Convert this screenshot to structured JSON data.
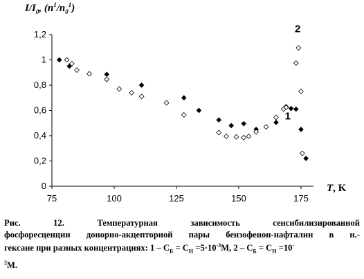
{
  "chart_data": {
    "type": "scatter",
    "ylabel_main": "I/I",
    "ylabel_main_sub": "0",
    "ylabel_comma": ", (n",
    "ylabel_sup1": "1",
    "ylabel_slash": "/n",
    "ylabel_sub0": "0",
    "ylabel_sup2": "1",
    "ylabel_close": ")",
    "xlabel_var": "T",
    "xlabel_unit": ", K",
    "xlim": [
      75,
      180
    ],
    "ylim": [
      0,
      1.2
    ],
    "xticks": [
      75,
      100,
      125,
      150,
      175
    ],
    "xtick_labels": [
      "75",
      "100",
      "125",
      "150",
      "175"
    ],
    "yticks": [
      0,
      0.2,
      0.4,
      0.6,
      0.8,
      1,
      1.2
    ],
    "ytick_labels": [
      "0",
      "0,2",
      "0,4",
      "0,6",
      "0,8",
      "1",
      "1,2"
    ],
    "grid": false,
    "series": [
      {
        "name": "1",
        "marker": "filled-diamond",
        "label_at": [
          168.5,
          0.53
        ],
        "points": [
          [
            78,
            1.0
          ],
          [
            82,
            0.95
          ],
          [
            97,
            0.885
          ],
          [
            111,
            0.8
          ],
          [
            128,
            0.7
          ],
          [
            134,
            0.6
          ],
          [
            142,
            0.525
          ],
          [
            147,
            0.48
          ],
          [
            152,
            0.495
          ],
          [
            157,
            0.45
          ],
          [
            165,
            0.505
          ],
          [
            169,
            0.63
          ],
          [
            171,
            0.615
          ],
          [
            173,
            0.61
          ],
          [
            175,
            0.45
          ],
          [
            177,
            0.22
          ]
        ]
      },
      {
        "name": "2",
        "marker": "hollow-diamond",
        "label_at": [
          172.5,
          1.22
        ],
        "points": [
          [
            81,
            1.0
          ],
          [
            83,
            0.97
          ],
          [
            85,
            0.92
          ],
          [
            90,
            0.89
          ],
          [
            97,
            0.845
          ],
          [
            102,
            0.77
          ],
          [
            107,
            0.74
          ],
          [
            111,
            0.71
          ],
          [
            121,
            0.66
          ],
          [
            128,
            0.565
          ],
          [
            142,
            0.425
          ],
          [
            145,
            0.395
          ],
          [
            149,
            0.39
          ],
          [
            152,
            0.385
          ],
          [
            154,
            0.395
          ],
          [
            157,
            0.43
          ],
          [
            161,
            0.47
          ],
          [
            165,
            0.545
          ],
          [
            168,
            0.61
          ],
          [
            169,
            0.625
          ],
          [
            173,
            0.975
          ],
          [
            174,
            1.095
          ],
          [
            175,
            0.75
          ],
          [
            175.5,
            0.26
          ]
        ]
      }
    ]
  },
  "caption": {
    "line1_words": [
      "Рис.",
      "12.",
      "Температурная",
      "зависимость",
      "сенсибилизированной"
    ],
    "line2_words": [
      "фосфоресценции",
      "донорно-акцепторной",
      "пары",
      "бензофенон-нафталин",
      "в",
      "н.-"
    ],
    "line3_a": "гексане при разных концентрациях: 1 – C",
    "line3_sub_b1": "Б",
    "line3_eq1": " = C",
    "line3_sub_h1": "Н",
    "line3_val1": " =5·10",
    "line3_exp1": "-3",
    "line3_unit1": "M,  2 – C",
    "line3_sub_b2": "Б",
    "line3_eq2": " = C",
    "line3_sub_h2": "Н",
    "line3_val2": " =10",
    "line3_exp2": "-",
    "line4_exp": "2",
    "line4_unit": "M."
  }
}
